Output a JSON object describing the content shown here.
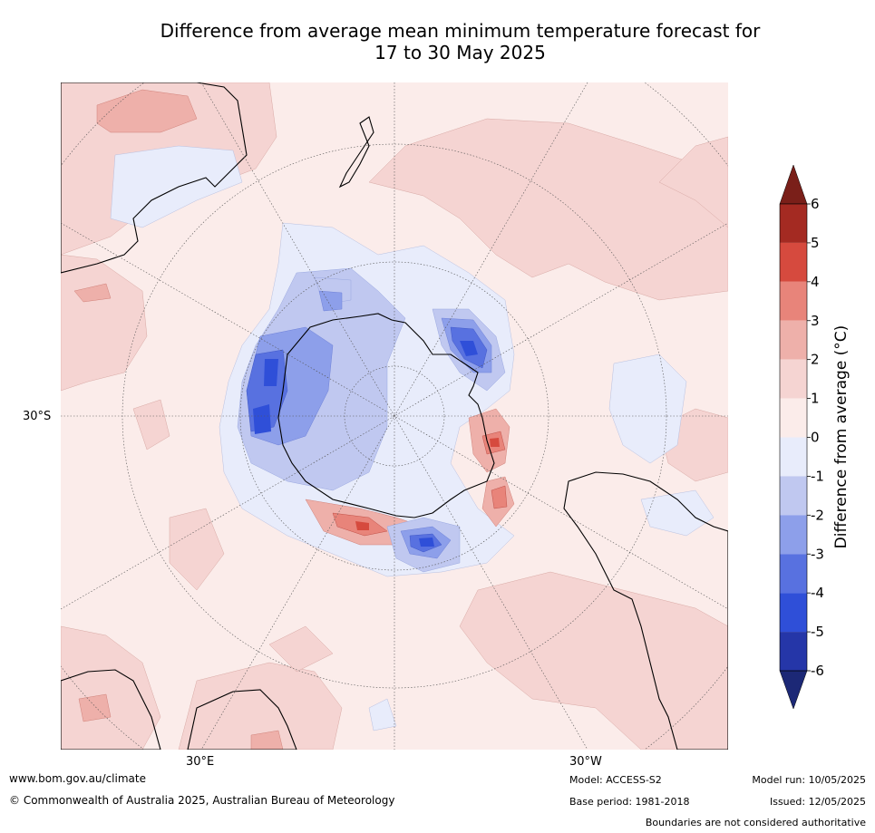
{
  "title": {
    "line1": "Difference from average mean minimum temperature forecast for",
    "line2": "17 to 30 May 2025"
  },
  "map": {
    "projection": "south-polar-stereographic",
    "lat_labels": [
      "30°S"
    ],
    "lon_labels": [
      "30°E",
      "30°W"
    ]
  },
  "colorbar": {
    "label": "Difference from average ($^\\circ$C)",
    "label_display": "Difference from average (°C)",
    "ticks": [
      "6",
      "5",
      "4",
      "3",
      "2",
      "1",
      "0",
      "-1",
      "-2",
      "-3",
      "-4",
      "-5",
      "-6"
    ],
    "colors": [
      "#7a1f19",
      "#a42a22",
      "#d64a3e",
      "#e8847a",
      "#eeb0aa",
      "#f5d4d2",
      "#fbecea",
      "#e8ecfb",
      "#c0c8f0",
      "#8d9fea",
      "#5871e0",
      "#2f4fd8",
      "#2536a8",
      "#1c2876"
    ]
  },
  "footer": {
    "website": "www.bom.gov.au/climate",
    "copyright": "© Commonwealth of Australia 2025, Australian Bureau of Meteorology",
    "model": "Model: ACCESS-S2",
    "base_period": "Base period: 1981-2018",
    "model_run": "Model run: 10/05/2025",
    "issued": "Issued: 12/05/2025",
    "disclaimer": "Boundaries are not considered authoritative"
  }
}
